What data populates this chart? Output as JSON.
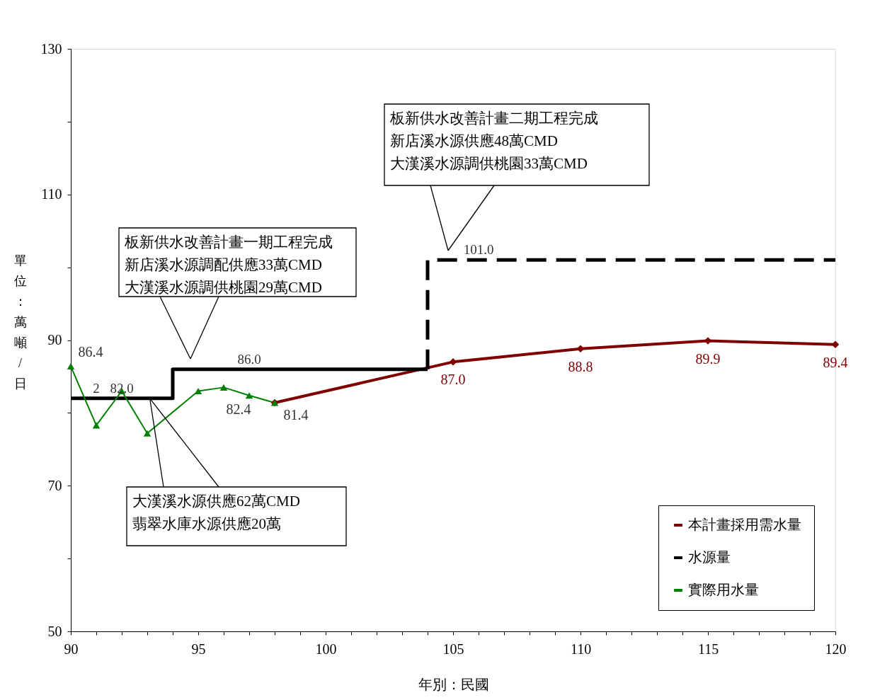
{
  "chart_data": {
    "type": "line",
    "xlabel": "年別：民國",
    "ylabel": "單位：萬噸/日",
    "xlim": [
      90,
      120
    ],
    "ylim": [
      50,
      130
    ],
    "xticks": [
      90,
      {
        "value": 91,
        "label": null
      },
      {
        "value": 92,
        "label": null
      },
      {
        "value": 93,
        "label": null
      },
      {
        "value": 94,
        "label": null
      },
      95,
      {
        "value": 96,
        "label": null
      },
      {
        "value": 97,
        "label": null
      },
      {
        "value": 98,
        "label": null
      },
      {
        "value": 99,
        "label": null
      },
      100,
      {
        "value": 101,
        "label": null
      },
      {
        "value": 102,
        "label": null
      },
      {
        "value": 103,
        "label": null
      },
      {
        "value": 104,
        "label": null
      },
      105,
      {
        "value": 106,
        "label": null
      },
      {
        "value": 107,
        "label": null
      },
      {
        "value": 108,
        "label": null
      },
      {
        "value": 109,
        "label": null
      },
      110,
      {
        "value": 111,
        "label": null
      },
      {
        "value": 112,
        "label": null
      },
      {
        "value": 113,
        "label": null
      },
      {
        "value": 114,
        "label": null
      },
      115,
      {
        "value": 116,
        "label": null
      },
      {
        "value": 117,
        "label": null
      },
      {
        "value": 118,
        "label": null
      },
      {
        "value": 119,
        "label": null
      },
      120
    ],
    "yticks": [
      50,
      {
        "value": 60,
        "label": null
      },
      70,
      {
        "value": 80,
        "label": null
      },
      90,
      {
        "value": 100,
        "label": null
      },
      110,
      {
        "value": 120,
        "label": null
      },
      130
    ],
    "grid": false,
    "legend": "bottom right",
    "series": [
      {
        "name": "本計畫採用需水量",
        "color": "#800000",
        "marker": "diamond",
        "x": [
          98,
          105,
          110,
          115,
          120
        ],
        "values": [
          81.4,
          87.0,
          88.8,
          89.9,
          89.4
        ],
        "value_labels": [
          null,
          "87.0",
          "88.8",
          "89.9",
          "89.4"
        ]
      },
      {
        "name": "水源量",
        "color": "#000000",
        "marker": "none",
        "x": [
          90,
          94,
          94,
          104
        ],
        "values": [
          82,
          82,
          86,
          86
        ]
      },
      {
        "name": "實際用水量",
        "color": "#008000",
        "marker": "triangle",
        "x": [
          90,
          91,
          92,
          93,
          95,
          96,
          97,
          98
        ],
        "values": [
          86.4,
          78.3,
          83.0,
          77.2,
          83.0,
          83.5,
          82.4,
          81.4
        ],
        "value_labels": [
          "86.4",
          null,
          null,
          null,
          null,
          null,
          "82.4",
          "81.4"
        ]
      },
      {
        "color": "#000000",
        "marker": "none",
        "line_style": "dashed",
        "x": [
          104,
          104,
          120
        ],
        "values": [
          86,
          101,
          101
        ]
      }
    ],
    "annotations": [
      {
        "text": "82.0",
        "x": 92,
        "y": 82
      },
      {
        "text": "2",
        "x": 91,
        "y": 82
      },
      {
        "text": "86.0",
        "x": 97,
        "y": 86
      },
      {
        "text": "101.0",
        "x": 106,
        "y": 101
      },
      "板新供水改善計畫一期工程完成",
      "新店溪水源調配供應33萬CMD",
      "大漢溪水源調供桃園29萬CMD",
      "板新供水改善計畫二期工程完成",
      "新店溪水源供應48萬CMD",
      "大漢溪水源調供桃園33萬CMD",
      {
        "text": "大漢溪水源供應62萬CMD",
        "x": 93.1,
        "y": 82
      },
      "翡翠水庫水源供應20萬"
    ]
  }
}
